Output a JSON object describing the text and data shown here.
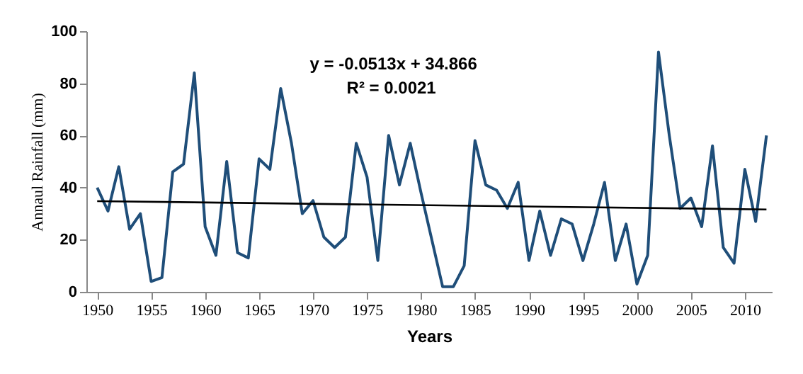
{
  "chart_data": {
    "type": "line",
    "xlabel": "Years",
    "ylabel": "Annaul Rainfall (mm)",
    "x": [
      1950,
      1951,
      1952,
      1953,
      1954,
      1955,
      1956,
      1957,
      1958,
      1959,
      1960,
      1961,
      1962,
      1963,
      1964,
      1965,
      1966,
      1967,
      1968,
      1969,
      1970,
      1971,
      1972,
      1973,
      1974,
      1975,
      1976,
      1977,
      1978,
      1979,
      1980,
      1981,
      1982,
      1983,
      1984,
      1985,
      1986,
      1987,
      1988,
      1989,
      1990,
      1991,
      1992,
      1993,
      1994,
      1995,
      1996,
      1997,
      1998,
      1999,
      2000,
      2001,
      2002,
      2003,
      2004,
      2005,
      2006,
      2007,
      2008,
      2009,
      2010,
      2011,
      2012
    ],
    "series": [
      {
        "color": "#1f4e79",
        "values": [
          40,
          31,
          48,
          24,
          30,
          4,
          5.5,
          46,
          49,
          84,
          25,
          14,
          50,
          15,
          13,
          51,
          47,
          78,
          57,
          30,
          35,
          21,
          17,
          21,
          57,
          44,
          12,
          60,
          41,
          57,
          38,
          20,
          2,
          2,
          10,
          58,
          41,
          39,
          32,
          42,
          12,
          31,
          14,
          28,
          26,
          12,
          26,
          42,
          12,
          26,
          3,
          14,
          92,
          60,
          32,
          36,
          25,
          56,
          17,
          11,
          47,
          27,
          60
        ]
      },
      {
        "type": "line",
        "color": "#000000",
        "x": [
          1950,
          2012
        ],
        "values": [
          34.8,
          31.6
        ]
      }
    ],
    "xlim": [
      1949,
      2012.5
    ],
    "xticks": [
      1950,
      1955,
      1960,
      1965,
      1970,
      1975,
      1980,
      1985,
      1990,
      1995,
      2000,
      2005,
      2010
    ],
    "ylim": [
      0,
      100
    ],
    "yticks": [
      0,
      20,
      40,
      60,
      80,
      100
    ],
    "marker": "none",
    "line_style": "solid",
    "annotations": [
      "y = -0.0513x + 34.866",
      "R² = 0.0021"
    ]
  }
}
